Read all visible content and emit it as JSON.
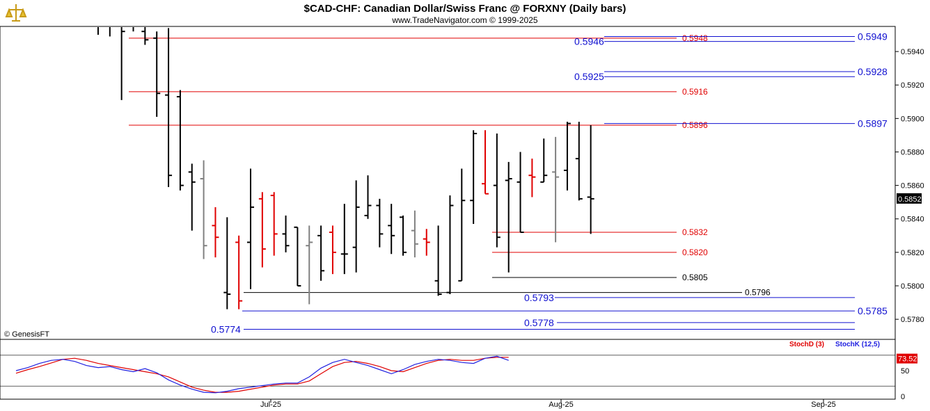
{
  "title": "$CAD-CHF:  Canadian Dollar/Swiss Franc @ FORXNY  (Daily bars)",
  "subtitle": "www.TradeNavigator.com © 1999-2025",
  "copyright": "© GenesisFT",
  "colors": {
    "up": "#000000",
    "down": "#e00000",
    "neutral": "#808080",
    "red_level": "#e00000",
    "blue_level": "#1010d0",
    "stoch_k": "#2020e0",
    "stoch_d": "#e00000",
    "last_label_bg": "#000000"
  },
  "last_price_label": "0.5852",
  "stoch_value_label": "73.52",
  "chart_data": [
    {
      "type": "ohlc-bar",
      "title": "$CAD-CHF:  Canadian Dollar/Swiss Franc @ FORXNY  (Daily bars)",
      "ylim": [
        0.5768,
        0.5955
      ],
      "y_ticks": [
        "0.5780",
        "0.5800",
        "0.5820",
        "0.5840",
        "0.5860",
        "0.5880",
        "0.5900",
        "0.5920",
        "0.5940"
      ],
      "x_ticks": [
        "Jul-25",
        "Aug-25",
        "Sep-25"
      ],
      "bars": [
        {
          "o": 0.5958,
          "h": 0.597,
          "l": 0.595,
          "c": 0.5955,
          "col": "black"
        },
        {
          "o": 0.5962,
          "h": 0.5975,
          "l": 0.5949,
          "c": 0.5958,
          "col": "black"
        },
        {
          "o": 0.596,
          "h": 0.5969,
          "l": 0.5911,
          "c": 0.5952,
          "col": "black"
        },
        {
          "o": 0.5958,
          "h": 0.5975,
          "l": 0.5952,
          "c": 0.5955,
          "col": "black"
        },
        {
          "o": 0.5952,
          "h": 0.596,
          "l": 0.5944,
          "c": 0.5947,
          "col": "black"
        },
        {
          "o": 0.5948,
          "h": 0.5952,
          "l": 0.5901,
          "c": 0.5915,
          "col": "black"
        },
        {
          "o": 0.5914,
          "h": 0.5954,
          "l": 0.5859,
          "c": 0.5866,
          "col": "black"
        },
        {
          "o": 0.5913,
          "h": 0.5917,
          "l": 0.5857,
          "c": 0.586,
          "col": "black"
        },
        {
          "o": 0.5868,
          "h": 0.5873,
          "l": 0.5833,
          "c": 0.5862,
          "col": "black"
        },
        {
          "o": 0.5864,
          "h": 0.5875,
          "l": 0.5816,
          "c": 0.5824,
          "col": "gray"
        },
        {
          "o": 0.5836,
          "h": 0.5847,
          "l": 0.5817,
          "c": 0.5829,
          "col": "red"
        },
        {
          "o": 0.5796,
          "h": 0.5841,
          "l": 0.5786,
          "c": 0.5795,
          "col": "black"
        },
        {
          "o": 0.5826,
          "h": 0.583,
          "l": 0.5786,
          "c": 0.5791,
          "col": "red"
        },
        {
          "o": 0.5826,
          "h": 0.587,
          "l": 0.5798,
          "c": 0.5847,
          "col": "black"
        },
        {
          "o": 0.5852,
          "h": 0.5856,
          "l": 0.5811,
          "c": 0.5822,
          "col": "red"
        },
        {
          "o": 0.5854,
          "h": 0.5856,
          "l": 0.5818,
          "c": 0.5831,
          "col": "red"
        },
        {
          "o": 0.5831,
          "h": 0.5842,
          "l": 0.582,
          "c": 0.5824,
          "col": "black"
        },
        {
          "o": 0.5835,
          "h": 0.5835,
          "l": 0.58,
          "c": 0.58,
          "col": "black"
        },
        {
          "o": 0.5824,
          "h": 0.5836,
          "l": 0.5789,
          "c": 0.5826,
          "col": "gray"
        },
        {
          "o": 0.583,
          "h": 0.5836,
          "l": 0.5803,
          "c": 0.5809,
          "col": "black"
        },
        {
          "o": 0.5832,
          "h": 0.5836,
          "l": 0.5807,
          "c": 0.582,
          "col": "red"
        },
        {
          "o": 0.5819,
          "h": 0.5849,
          "l": 0.5807,
          "c": 0.5819,
          "col": "black"
        },
        {
          "o": 0.5823,
          "h": 0.5863,
          "l": 0.5808,
          "c": 0.5847,
          "col": "black"
        },
        {
          "o": 0.5842,
          "h": 0.5866,
          "l": 0.584,
          "c": 0.5848,
          "col": "black"
        },
        {
          "o": 0.5848,
          "h": 0.5852,
          "l": 0.5823,
          "c": 0.5831,
          "col": "black"
        },
        {
          "o": 0.5836,
          "h": 0.5849,
          "l": 0.5819,
          "c": 0.583,
          "col": "black"
        },
        {
          "o": 0.5841,
          "h": 0.5842,
          "l": 0.5818,
          "c": 0.582,
          "col": "black"
        },
        {
          "o": 0.5833,
          "h": 0.5845,
          "l": 0.5817,
          "c": 0.5825,
          "col": "gray"
        },
        {
          "o": 0.5828,
          "h": 0.5834,
          "l": 0.5818,
          "c": 0.5826,
          "col": "red"
        },
        {
          "o": 0.5803,
          "h": 0.5836,
          "l": 0.5794,
          "c": 0.5795,
          "col": "black"
        },
        {
          "o": 0.5796,
          "h": 0.5854,
          "l": 0.5795,
          "c": 0.5848,
          "col": "black"
        },
        {
          "o": 0.5803,
          "h": 0.587,
          "l": 0.5803,
          "c": 0.5851,
          "col": "black"
        },
        {
          "o": 0.5851,
          "h": 0.5893,
          "l": 0.5837,
          "c": 0.5891,
          "col": "black"
        },
        {
          "o": 0.5861,
          "h": 0.5893,
          "l": 0.5855,
          "c": 0.5855,
          "col": "red"
        },
        {
          "o": 0.586,
          "h": 0.5891,
          "l": 0.5823,
          "c": 0.5829,
          "col": "black"
        },
        {
          "o": 0.5863,
          "h": 0.5874,
          "l": 0.5808,
          "c": 0.5864,
          "col": "black"
        },
        {
          "o": 0.5862,
          "h": 0.588,
          "l": 0.5832,
          "c": 0.5832,
          "col": "black"
        },
        {
          "o": 0.5866,
          "h": 0.5876,
          "l": 0.5853,
          "c": 0.5865,
          "col": "red"
        },
        {
          "o": 0.5862,
          "h": 0.5888,
          "l": 0.5862,
          "c": 0.5866,
          "col": "black"
        },
        {
          "o": 0.5868,
          "h": 0.5889,
          "l": 0.5826,
          "c": 0.5865,
          "col": "gray"
        },
        {
          "o": 0.5869,
          "h": 0.5898,
          "l": 0.5857,
          "c": 0.5897,
          "col": "black"
        },
        {
          "o": 0.5876,
          "h": 0.5898,
          "l": 0.5851,
          "c": 0.5852,
          "col": "black"
        },
        {
          "o": 0.5853,
          "h": 0.5896,
          "l": 0.5831,
          "c": 0.5852,
          "col": "black"
        }
      ],
      "levels_red": [
        {
          "value": 0.5948,
          "label": "0.5948"
        },
        {
          "value": 0.5916,
          "label": "0.5916"
        },
        {
          "value": 0.5896,
          "label": "0.5896"
        },
        {
          "value": 0.5832,
          "label": "0.5832"
        },
        {
          "value": 0.582,
          "label": "0.5820"
        }
      ],
      "levels_black": [
        {
          "value": 0.5805,
          "label": "0.5805"
        },
        {
          "value": 0.5796,
          "label": "0.5796"
        }
      ],
      "levels_blue": [
        {
          "value": 0.5949,
          "label": "0.5949"
        },
        {
          "value": 0.5946,
          "label": "0.5946"
        },
        {
          "value": 0.5928,
          "label": "0.5928"
        },
        {
          "value": 0.5925,
          "label": "0.5925"
        },
        {
          "value": 0.5897,
          "label": "0.5897"
        },
        {
          "value": 0.5793,
          "label": "0.5793"
        },
        {
          "value": 0.5785,
          "label": "0.5785"
        },
        {
          "value": 0.5778,
          "label": "0.5778"
        },
        {
          "value": 0.5774,
          "label": "0.5774"
        }
      ]
    },
    {
      "type": "line",
      "ylim": [
        0,
        100
      ],
      "y_ticks": [
        "0",
        "50"
      ],
      "series": [
        {
          "name": "StochD (3)",
          "values": [
            45,
            52,
            58,
            65,
            72,
            74,
            70,
            64,
            60,
            56,
            52,
            48,
            44,
            38,
            28,
            18,
            12,
            8,
            8,
            10,
            14,
            18,
            22,
            24,
            24,
            30,
            44,
            58,
            66,
            68,
            64,
            58,
            50,
            48,
            56,
            64,
            70,
            72,
            70,
            70,
            74,
            76,
            76
          ]
        },
        {
          "name": "StochK (12,5)",
          "values": [
            50,
            56,
            64,
            70,
            72,
            68,
            60,
            56,
            58,
            52,
            48,
            54,
            46,
            32,
            22,
            14,
            8,
            7,
            10,
            15,
            18,
            21,
            24,
            26,
            26,
            38,
            55,
            66,
            72,
            66,
            60,
            52,
            44,
            52,
            62,
            68,
            72,
            70,
            66,
            64,
            74,
            78,
            70
          ]
        }
      ]
    }
  ]
}
